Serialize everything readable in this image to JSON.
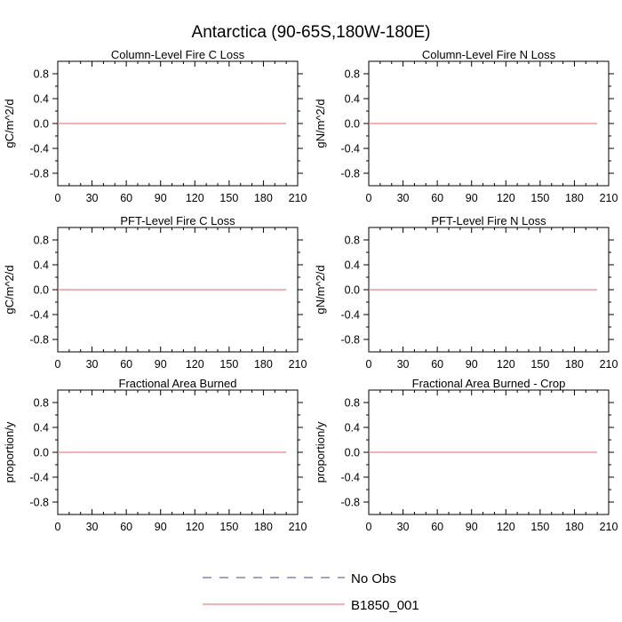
{
  "figure": {
    "title": "Antarctica (90-65S,180W-180E)"
  },
  "chart_data": [
    {
      "type": "line",
      "title": "Column-Level Fire C Loss",
      "ylabel": "gC/m^2/d",
      "xlim": [
        0,
        210
      ],
      "ylim": [
        -1.0,
        1.0
      ],
      "xticks": [
        "0",
        "30",
        "60",
        "90",
        "120",
        "150",
        "180",
        "210"
      ],
      "yticks": [
        "0.8",
        "0.4",
        "0.0",
        "-0.4",
        "-0.8"
      ],
      "series": [
        {
          "name": "B1850_001",
          "x": [
            0,
            200
          ],
          "y": [
            0.0,
            0.0
          ]
        }
      ]
    },
    {
      "type": "line",
      "title": "Column-Level Fire N Loss",
      "ylabel": "gN/m^2/d",
      "xlim": [
        0,
        210
      ],
      "ylim": [
        -1.0,
        1.0
      ],
      "xticks": [
        "0",
        "30",
        "60",
        "90",
        "120",
        "150",
        "180",
        "210"
      ],
      "yticks": [
        "0.8",
        "0.4",
        "0.0",
        "-0.4",
        "-0.8"
      ],
      "series": [
        {
          "name": "B1850_001",
          "x": [
            0,
            200
          ],
          "y": [
            0.0,
            0.0
          ]
        }
      ]
    },
    {
      "type": "line",
      "title": "PFT-Level Fire C Loss",
      "ylabel": "gC/m^2/d",
      "xlim": [
        0,
        210
      ],
      "ylim": [
        -1.0,
        1.0
      ],
      "xticks": [
        "0",
        "30",
        "60",
        "90",
        "120",
        "150",
        "180",
        "210"
      ],
      "yticks": [
        "0.8",
        "0.4",
        "0.0",
        "-0.4",
        "-0.8"
      ],
      "series": [
        {
          "name": "B1850_001",
          "x": [
            0,
            200
          ],
          "y": [
            0.0,
            0.0
          ]
        }
      ]
    },
    {
      "type": "line",
      "title": "PFT-Level Fire N Loss",
      "ylabel": "gN/m^2/d",
      "xlim": [
        0,
        210
      ],
      "ylim": [
        -1.0,
        1.0
      ],
      "xticks": [
        "0",
        "30",
        "60",
        "90",
        "120",
        "150",
        "180",
        "210"
      ],
      "yticks": [
        "0.8",
        "0.4",
        "0.0",
        "-0.4",
        "-0.8"
      ],
      "series": [
        {
          "name": "B1850_001",
          "x": [
            0,
            200
          ],
          "y": [
            0.0,
            0.0
          ]
        }
      ]
    },
    {
      "type": "line",
      "title": "Fractional Area Burned",
      "ylabel": "proportion/y",
      "xlim": [
        0,
        210
      ],
      "ylim": [
        -1.0,
        1.0
      ],
      "xticks": [
        "0",
        "30",
        "60",
        "90",
        "120",
        "150",
        "180",
        "210"
      ],
      "yticks": [
        "0.8",
        "0.4",
        "0.0",
        "-0.4",
        "-0.8"
      ],
      "series": [
        {
          "name": "B1850_001",
          "x": [
            0,
            200
          ],
          "y": [
            0.0,
            0.0
          ]
        }
      ]
    },
    {
      "type": "line",
      "title": "Fractional Area Burned - Crop",
      "ylabel": "proportion/y",
      "xlim": [
        0,
        210
      ],
      "ylim": [
        -1.0,
        1.0
      ],
      "xticks": [
        "0",
        "30",
        "60",
        "90",
        "120",
        "150",
        "180",
        "210"
      ],
      "yticks": [
        "0.8",
        "0.4",
        "0.0",
        "-0.4",
        "-0.8"
      ],
      "series": [
        {
          "name": "B1850_001",
          "x": [
            0,
            200
          ],
          "y": [
            0.0,
            0.0
          ]
        }
      ]
    }
  ],
  "legend": {
    "placement": "bottom-center",
    "entries": [
      {
        "label": "No Obs",
        "color": "#6a6aa8",
        "style": "dashed"
      },
      {
        "label": "B1850_001",
        "color": "#f08080",
        "style": "solid"
      }
    ]
  },
  "colors": {
    "series_line": "#f08080",
    "axes": "#000000"
  }
}
